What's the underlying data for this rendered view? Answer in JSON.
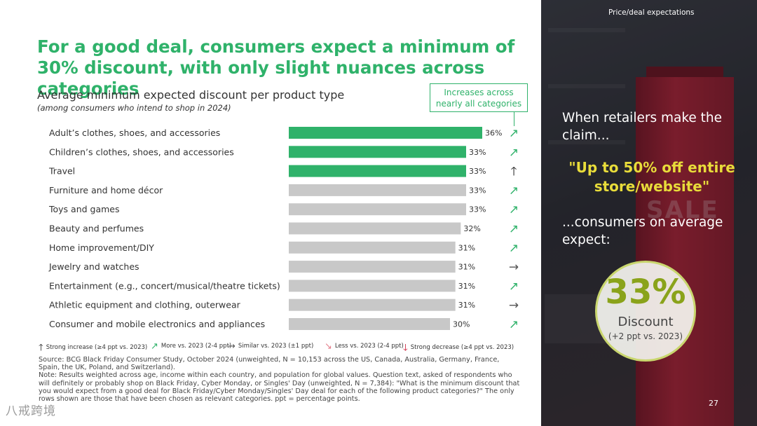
{
  "slide": {
    "title": "For a good deal, consumers expect a minimum of 30% discount, with only slight nuances across categories",
    "subtitle": "Average minimum expected discount per product type",
    "subtitle_note": "(among consumers who intend to shop in 2024)",
    "callout": "Increases across nearly all categories",
    "header_label": "Price/deal expectations",
    "page_number": "27",
    "watermark": "八戒跨境"
  },
  "colors": {
    "accent_green": "#2fb26a",
    "bar_grey": "#c8c8c8",
    "arrow_green": "#2fb26a",
    "arrow_dark": "#1a1a1a",
    "arrow_grey": "#555555",
    "arrow_red": "#c8102e",
    "arrow_light_red": "#e57f8c",
    "quote_yellow": "#e8dc3a",
    "circle_green": "#8aa31a"
  },
  "chart_data": {
    "type": "bar",
    "orientation": "horizontal",
    "categories": [
      "Adult’s clothes, shoes, and accessories",
      "Children’s clothes, shoes, and accessories",
      "Travel",
      "Furniture and home décor",
      "Toys and games",
      "Beauty and perfumes",
      "Home improvement/DIY",
      "Jewelry and watches",
      "Entertainment (e.g., concert/musical/theatre tickets)",
      "Athletic equipment and clothing, outerwear",
      "Consumer and mobile electronics and appliances"
    ],
    "values": [
      36,
      33,
      33,
      33,
      33,
      32,
      31,
      31,
      31,
      31,
      30
    ],
    "value_labels": [
      "36%",
      "33%",
      "33%",
      "33%",
      "33%",
      "32%",
      "31%",
      "31%",
      "31%",
      "31%",
      "30%"
    ],
    "highlighted": [
      true,
      true,
      true,
      false,
      false,
      false,
      false,
      false,
      false,
      false,
      false
    ],
    "trend": [
      "more",
      "more",
      "strong_increase",
      "more",
      "more",
      "more",
      "more",
      "similar",
      "more",
      "similar",
      "more"
    ],
    "xlim": [
      0,
      36
    ]
  },
  "legend": {
    "strong_increase": "Strong increase (≥4 ppt vs. 2023)",
    "more": "More vs. 2023 (2-4 ppt)",
    "similar": "Similar vs. 2023 (±1 ppt)",
    "less": "Less vs. 2023 (2-4 ppt)",
    "strong_decrease": "Strong decrease (≥4 ppt vs. 2023)"
  },
  "source": {
    "line1": "Source: BCG Black Friday Consumer Study, October 2024 (unweighted, N = 10,153 across the US, Canada, Australia, Germany, France, Spain, the UK, Poland, and Switzerland).",
    "line2": "Note: Results weighted across age, income within each country, and population for global values. Question text, asked of respondents who will definitely or probably shop on Black Friday, Cyber Monday, or Singles' Day (unweighted, N = 7,384): \"What is the minimum discount that you would expect from a good deal for Black Friday/Cyber Monday/Singles' Day deal for each of the following product categories?\" The only rows shown are those that have been chosen as relevant categories. ppt = percentage points."
  },
  "panel": {
    "claim": "When retailers make the claim...",
    "quote": "\"Up to 50% off entire store/website\"",
    "expect": "...consumers on average expect:",
    "sale_sign": "SALE",
    "circle_value": "33%",
    "circle_label": "Discount",
    "circle_note": "(+2 ppt vs. 2023)"
  }
}
